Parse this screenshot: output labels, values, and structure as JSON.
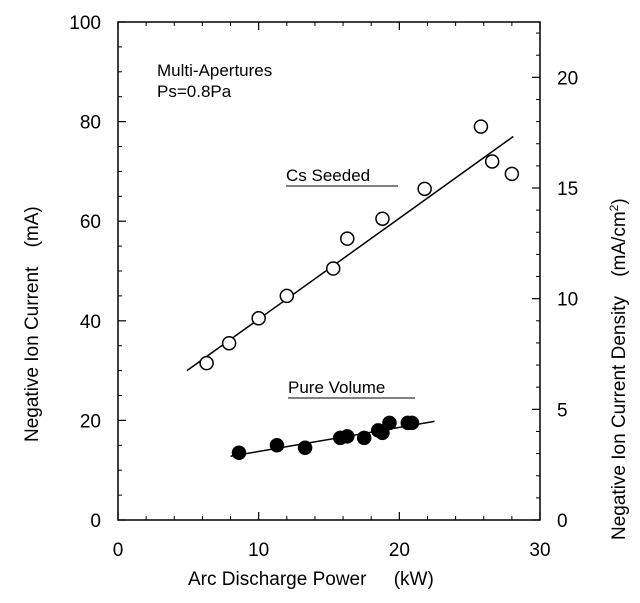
{
  "chart_data": {
    "type": "scatter",
    "xlabel": "Arc Discharge Power",
    "xunit": "(kW)",
    "ylabel": "Negative Ion Current",
    "yunit": "(mA)",
    "y2label": "Negative Ion Current Density",
    "y2unit_base": "(mA/cm",
    "y2unit_sup": "2",
    "y2unit_end": ")",
    "xlim": [
      0,
      30
    ],
    "ylim": [
      0,
      100
    ],
    "y2lim": [
      0,
      22.5
    ],
    "xticks": [
      "0",
      "10",
      "20",
      "30"
    ],
    "yticks": [
      "0",
      "20",
      "40",
      "60",
      "80",
      "100"
    ],
    "y2ticks": [
      "0",
      "5",
      "10",
      "15",
      "20"
    ],
    "annotation_line1": "Multi-Apertures",
    "annotation_line2": "Ps=0.8Pa",
    "grid": false,
    "series": [
      {
        "name": "Cs Seeded",
        "marker": "open-circle",
        "x": [
          6.3,
          7.9,
          10.0,
          12.0,
          15.3,
          16.3,
          18.8,
          21.8,
          25.8,
          26.6,
          28.0
        ],
        "y": [
          31.5,
          35.5,
          40.5,
          45.0,
          50.5,
          56.5,
          60.5,
          66.5,
          79.0,
          72.0,
          69.5
        ],
        "fit": {
          "x": [
            4.9,
            28.1
          ],
          "y": [
            30.0,
            77.0
          ]
        }
      },
      {
        "name": "Pure Volume",
        "marker": "filled-circle",
        "x": [
          8.6,
          11.3,
          13.3,
          15.8,
          16.3,
          17.5,
          18.5,
          18.8,
          19.3,
          20.6,
          20.9
        ],
        "y": [
          13.5,
          15.0,
          14.5,
          16.5,
          16.8,
          16.5,
          18.0,
          17.5,
          19.5,
          19.5,
          19.5
        ],
        "fit": {
          "x": [
            8.0,
            22.5
          ],
          "y": [
            12.8,
            19.8
          ]
        }
      }
    ]
  }
}
